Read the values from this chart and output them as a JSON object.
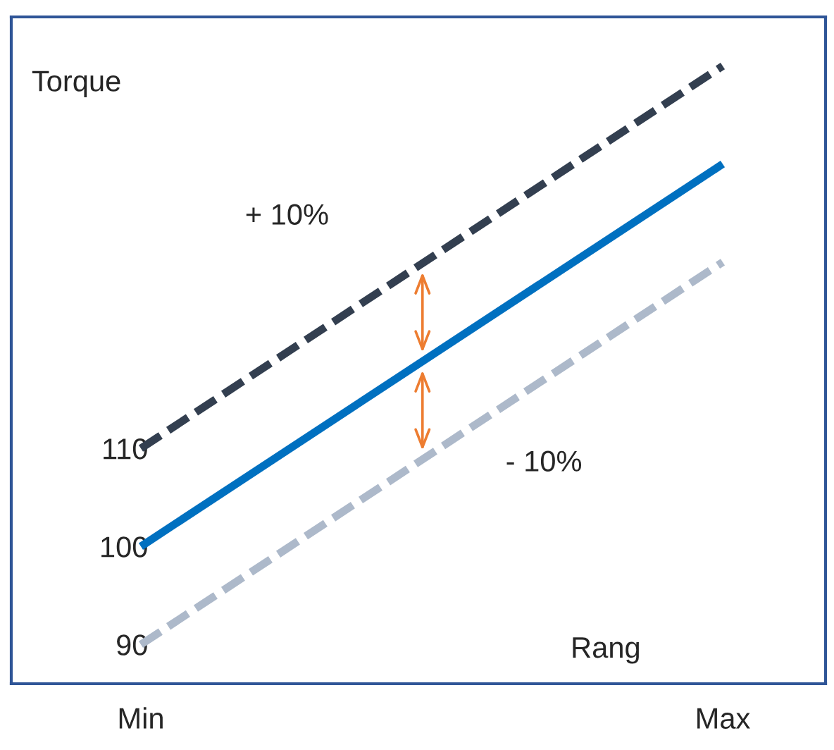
{
  "chart_data": {
    "type": "line",
    "ylabel": "Torque",
    "xlabel": "Rang",
    "categories": [
      "Min",
      "Max"
    ],
    "series": [
      {
        "color": "#333f50",
        "values": [
          110,
          149
        ],
        "line_style": "dashed"
      },
      {
        "color": "#0070c0",
        "values": [
          100,
          139
        ],
        "line_style": "solid"
      },
      {
        "color": "#adb9ca",
        "values": [
          90,
          129
        ],
        "line_style": "dashed"
      }
    ],
    "ylim": [
      86,
      154
    ],
    "yticks": [
      90,
      100,
      110
    ],
    "annotations": [
      "+ 10%",
      "- 10%"
    ]
  }
}
